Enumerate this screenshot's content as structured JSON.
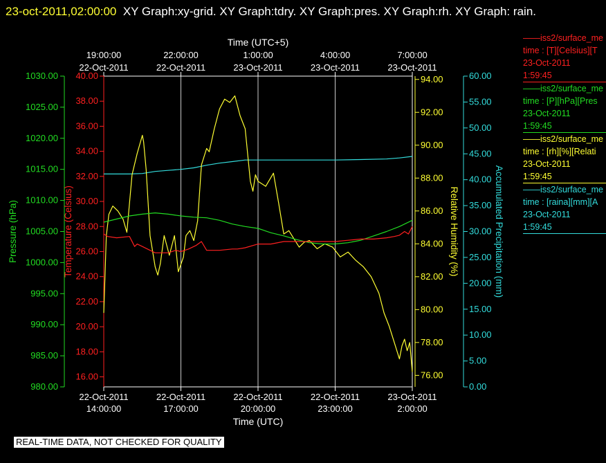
{
  "header": {
    "timestamp": "23-oct-2011,02:00:00",
    "title": "XY Graph:xy-grid.  XY Graph:tdry.  XY Graph:pres.  XY Graph:rh.  XY Graph: rain."
  },
  "footer": {
    "notice": "REAL-TIME DATA, NOT CHECKED FOR QUALITY"
  },
  "legend": [
    {
      "line1": "iss2/surface_me",
      "line2": "time : [T][Celsius][T",
      "line3": "23-Oct-2011",
      "line4": "1:59:45",
      "color": "#ff2020"
    },
    {
      "line1": "iss2/surface_me",
      "line2": "time : [P][hPa][Pres",
      "line3": "23-Oct-2011",
      "line4": "1:59:45",
      "color": "#22dd22"
    },
    {
      "line1": "iss2/surface_me",
      "line2": "time : [rh][%][Relati",
      "line3": "23-Oct-2011",
      "line4": "1:59:45",
      "color": "#ffff33"
    },
    {
      "line1": "iss2/surface_me",
      "line2": "time : [raina][mm][A",
      "line3": "23-Oct-2011",
      "line4": "1:59:45",
      "color": "#33dddd"
    }
  ],
  "chart_data": {
    "type": "line",
    "x_axis_bottom": {
      "label": "Time (UTC)",
      "ticks": [
        {
          "date": "22-Oct-2011",
          "time": "14:00:00",
          "hours": 0
        },
        {
          "date": "22-Oct-2011",
          "time": "17:00:00",
          "hours": 3
        },
        {
          "date": "22-Oct-2011",
          "time": "20:00:00",
          "hours": 6
        },
        {
          "date": "22-Oct-2011",
          "time": "23:00:00",
          "hours": 9
        },
        {
          "date": "23-Oct-2011",
          "time": "2:00:00",
          "hours": 12
        }
      ],
      "range_hours": [
        0,
        12
      ]
    },
    "x_axis_top": {
      "label": "Time (UTC+5)",
      "ticks": [
        {
          "time": "19:00:00",
          "date": "22-Oct-2011"
        },
        {
          "time": "22:00:00",
          "date": "22-Oct-2011"
        },
        {
          "time": "1:00:00",
          "date": "23-Oct-2011"
        },
        {
          "time": "4:00:00",
          "date": "23-Oct-2011"
        },
        {
          "time": "7:00:00",
          "date": "23-Oct-2011"
        }
      ]
    },
    "y_axes": {
      "pressure": {
        "label": "Pressure (hPa)",
        "color": "#22dd22",
        "range": [
          980,
          1030
        ],
        "ticks": [
          "1030.00",
          "1025.00",
          "1020.00",
          "1015.00",
          "1010.00",
          "1005.00",
          "1000.00",
          "995.00",
          "990.00",
          "985.00",
          "980.00"
        ]
      },
      "temperature": {
        "label": "Temperature (Celsius)",
        "color": "#ff2020",
        "range": [
          15.2,
          40
        ],
        "ticks": [
          "40.00",
          "38.00",
          "36.00",
          "34.00",
          "32.00",
          "30.00",
          "28.00",
          "26.00",
          "24.00",
          "22.00",
          "20.00",
          "18.00",
          "16.00"
        ]
      },
      "humidity": {
        "label": "Relative Humidity (%)",
        "color": "#ffff33",
        "range": [
          75.3,
          94.2
        ],
        "ticks": [
          "94.00",
          "92.00",
          "90.00",
          "88.00",
          "86.00",
          "84.00",
          "82.00",
          "80.00",
          "78.00",
          "76.00"
        ]
      },
      "rain": {
        "label": "Accumulated Precipitation (mm)",
        "color": "#33dddd",
        "range": [
          0,
          60
        ],
        "ticks": [
          "60.00",
          "55.00",
          "50.00",
          "45.00",
          "40.00",
          "35.00",
          "30.00",
          "25.00",
          "20.00",
          "15.00",
          "10.00",
          "5.00",
          "0.00"
        ]
      }
    },
    "grid": true,
    "series": [
      {
        "key": "temperature",
        "color": "#ff2020",
        "x": [
          0,
          0.15,
          0.5,
          1.0,
          1.2,
          1.3,
          1.5,
          2.0,
          2.5,
          2.8,
          3.0,
          3.3,
          3.6,
          3.8,
          4.0,
          4.5,
          5.0,
          5.2,
          5.5,
          6.0,
          6.5,
          7.0,
          7.5,
          8.0,
          8.5,
          9.0,
          9.5,
          10.0,
          10.5,
          11.0,
          11.3,
          11.5,
          11.7,
          11.85,
          12.0
        ],
        "y": [
          27.4,
          27.2,
          27.1,
          27.2,
          26.4,
          26.6,
          26.4,
          25.9,
          25.9,
          26.1,
          26.0,
          26.2,
          26.5,
          26.8,
          26.1,
          26.1,
          26.2,
          26.2,
          26.3,
          26.6,
          26.6,
          26.8,
          26.8,
          26.8,
          26.8,
          26.8,
          26.9,
          27.0,
          27.0,
          27.1,
          27.2,
          27.3,
          27.6,
          27.4,
          28.0
        ]
      },
      {
        "key": "pressure",
        "color": "#22dd22",
        "x": [
          0,
          0.5,
          1,
          1.5,
          2,
          2.5,
          3,
          3.5,
          4,
          4.5,
          5,
          5.5,
          6,
          6.5,
          7,
          7.5,
          8,
          8.5,
          9,
          9.5,
          10,
          10.5,
          11,
          11.5,
          12
        ],
        "y": [
          1006.5,
          1007,
          1007.5,
          1007.8,
          1008,
          1007.8,
          1007.5,
          1007.3,
          1007.2,
          1006.8,
          1006.2,
          1005.8,
          1005.5,
          1004.8,
          1004.3,
          1003.7,
          1003.2,
          1003,
          1003,
          1003.2,
          1003.6,
          1004.3,
          1005,
          1005.8,
          1006.8
        ]
      },
      {
        "key": "humidity",
        "color": "#ffff33",
        "x": [
          0,
          0.1,
          0.2,
          0.35,
          0.55,
          0.75,
          0.9,
          1.1,
          1.3,
          1.5,
          1.55,
          1.65,
          1.8,
          2.0,
          2.1,
          2.2,
          2.35,
          2.55,
          2.75,
          2.9,
          3.1,
          3.2,
          3.35,
          3.5,
          3.65,
          3.8,
          4.0,
          4.1,
          4.3,
          4.5,
          4.7,
          4.9,
          5.1,
          5.3,
          5.5,
          5.7,
          5.8,
          5.9,
          6.0,
          6.3,
          6.6,
          6.8,
          7.0,
          7.2,
          7.4,
          7.6,
          7.8,
          8.0,
          8.3,
          8.6,
          8.9,
          9.2,
          9.5,
          9.8,
          10.1,
          10.4,
          10.7,
          10.9,
          11.1,
          11.3,
          11.5,
          11.6,
          11.7,
          11.8,
          11.9,
          12.0
        ],
        "y": [
          79.8,
          84.5,
          85.8,
          86.3,
          86.0,
          85.5,
          84.7,
          88.2,
          89.5,
          90.6,
          90.2,
          88.5,
          84.5,
          82.6,
          82.1,
          82.8,
          84.5,
          83.3,
          84.5,
          82.3,
          83.2,
          84.5,
          84.8,
          84.2,
          85.4,
          88.8,
          89.8,
          89.6,
          91.0,
          92.2,
          92.8,
          92.6,
          93.0,
          91.8,
          91.0,
          87.8,
          87.2,
          88.2,
          87.8,
          87.5,
          88.3,
          86.5,
          84.6,
          84.8,
          84.3,
          83.8,
          84.1,
          84.2,
          83.7,
          84.0,
          83.8,
          83.2,
          83.5,
          83.0,
          82.6,
          82.0,
          81.0,
          79.8,
          79.0,
          78.0,
          77.0,
          77.8,
          78.2,
          77.5,
          78.0,
          76.2
        ]
      },
      {
        "key": "rain",
        "color": "#33dddd",
        "x": [
          0,
          1,
          1.5,
          2,
          2.5,
          3,
          3.5,
          4,
          4.5,
          5,
          5.5,
          6,
          7,
          8,
          9,
          10,
          11,
          11.5,
          12
        ],
        "y": [
          41.1,
          41.1,
          41.2,
          41.6,
          41.8,
          42.0,
          42.3,
          42.8,
          43.2,
          43.5,
          43.8,
          43.8,
          43.8,
          43.8,
          43.8,
          43.9,
          44.0,
          44.2,
          44.5
        ]
      }
    ]
  }
}
